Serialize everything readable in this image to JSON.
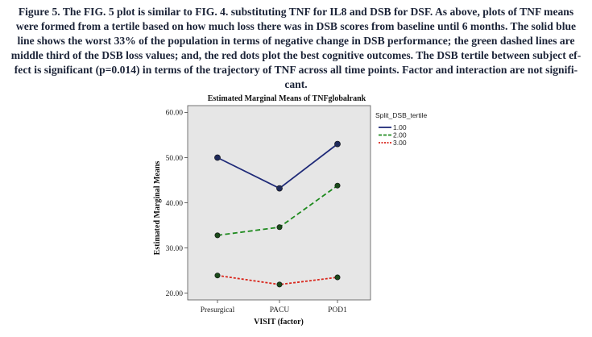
{
  "caption": {
    "lines": [
      "Figure 5. The FIG. 5 plot is similar to FIG. 4. substituting TNF for IL8 and DSB for DSF. As above, plots of TNF means",
      "were formed from a tertile based on how much loss there was in DSB scores from baseline until 6 months. The solid blue",
      "line shows the worst 33% of the population in terms of negative change in DSB performance; the green dashed lines are",
      "middle third of the DSB loss values; and, the red dots plot the best cognitive outcomes. The DSB tertile between subject ef-",
      "fect is significant (p=0.014) in terms of the trajectory of TNF across all time points. Factor and interaction are not signifi-",
      "cant."
    ]
  },
  "chart_data": {
    "type": "line",
    "title": "Estimated Marginal Means of TNFglobalrank",
    "xlabel": "VISIT (factor)",
    "ylabel": "Estimated Marginal Means",
    "categories": [
      "Presurgical",
      "PACU",
      "POD1"
    ],
    "ylim": [
      18.5,
      61.5
    ],
    "yticks": [
      20,
      30,
      40,
      50,
      60
    ],
    "ytick_labels": [
      "20.00",
      "30.00",
      "40.00",
      "50.00",
      "60.00"
    ],
    "grid": false,
    "legend": {
      "title": "Split_DSB_tertile",
      "placement": "right"
    },
    "series": [
      {
        "name": "1.00",
        "values": [
          50.0,
          43.2,
          53.0
        ],
        "color": "#1f2a78",
        "dash": "solid"
      },
      {
        "name": "2.00",
        "values": [
          32.8,
          34.6,
          43.8
        ],
        "color": "#1e8a1e",
        "dash": "dashed"
      },
      {
        "name": "3.00",
        "values": [
          23.9,
          21.9,
          23.5
        ],
        "color": "#d9261c",
        "dash": "dotted"
      }
    ],
    "plot_background": "#e6e6e6"
  }
}
